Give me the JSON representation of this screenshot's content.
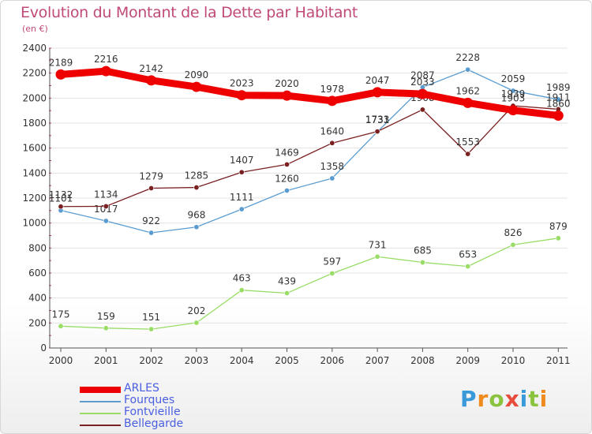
{
  "title": "Evolution du Montant de la Dette par Habitant",
  "subtitle": "(en €)",
  "colors": {
    "title": "#c04a78",
    "legend_text": "#4a5ee0",
    "grid": "#e3e3e3"
  },
  "chart_data": {
    "type": "line",
    "x": [
      "2000",
      "2001",
      "2002",
      "2003",
      "2004",
      "2005",
      "2006",
      "2007",
      "2008",
      "2009",
      "2010",
      "2011"
    ],
    "ylim": [
      0,
      2400
    ],
    "yticks": [
      0,
      200,
      400,
      600,
      800,
      1000,
      1200,
      1400,
      1600,
      1800,
      2000,
      2200,
      2400
    ],
    "grid": "horizontal",
    "legend_position": "bottom-left",
    "series": [
      {
        "name": "ARLES",
        "color": "#ee0000",
        "values": [
          2189,
          2216,
          2142,
          2090,
          2023,
          2020,
          1978,
          2047,
          2033,
          1962,
          1903,
          1860
        ]
      },
      {
        "name": "Fourques",
        "color": "#5a9cd0",
        "values": [
          1101,
          1017,
          922,
          968,
          1111,
          1260,
          1358,
          1731,
          2087,
          2228,
          2059,
          1989
        ]
      },
      {
        "name": "Fontvieille",
        "color": "#99dd66",
        "values": [
          175,
          159,
          151,
          202,
          463,
          439,
          597,
          731,
          685,
          653,
          826,
          879
        ]
      },
      {
        "name": "Bellegarde",
        "color": "#7a2020",
        "values": [
          1132,
          1134,
          1279,
          1285,
          1407,
          1469,
          1640,
          1733,
          1908,
          1553,
          1939,
          1911
        ]
      }
    ]
  },
  "logo": {
    "letters": [
      "P",
      "r",
      "o",
      "x",
      "i",
      "t",
      "i"
    ],
    "colors": [
      "#3a9ad9",
      "#f08a1c",
      "#8ac43f",
      "#e84c3d",
      "#3a9ad9",
      "#8ac43f",
      "#f08a1c"
    ]
  }
}
